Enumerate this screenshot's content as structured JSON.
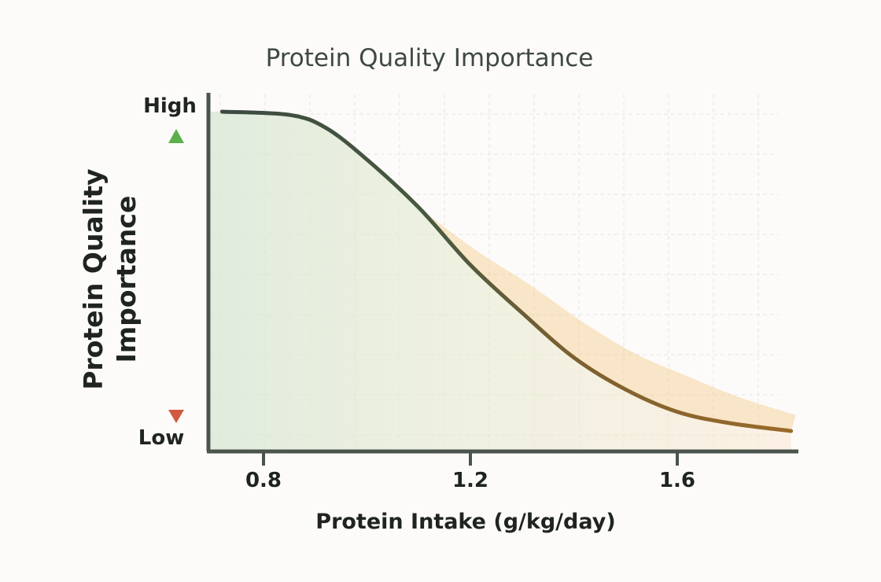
{
  "chart_data": {
    "type": "line",
    "title": "Protein Quality Importance",
    "xlabel": "Protein Intake (g/kg/day)",
    "ylabel": "Protein Quality Importance",
    "ylabel_lines": [
      "Protein Quality",
      "Importance"
    ],
    "y_high_label": "High",
    "y_low_label": "Low",
    "xticks": [
      0.8,
      1.2,
      1.6
    ],
    "xtick_labels": [
      "0.8",
      "1.2",
      "1.6"
    ],
    "xlim": [
      0.69,
      1.83
    ],
    "ylim": [
      0,
      1
    ],
    "grid": true,
    "x": [
      0.72,
      0.85,
      0.92,
      1.0,
      1.1,
      1.2,
      1.3,
      1.4,
      1.5,
      1.6,
      1.7,
      1.82
    ],
    "y": [
      1.0,
      0.99,
      0.95,
      0.85,
      0.7,
      0.52,
      0.37,
      0.23,
      0.13,
      0.06,
      0.025,
      0.0
    ],
    "colors": {
      "line_start": "#3d4a40",
      "line_end": "#9a6a2a",
      "arrow_high": "#5cb04a",
      "arrow_low": "#d25a40",
      "fill_left": "#d9e8d6",
      "band": "#f5c98a"
    }
  }
}
